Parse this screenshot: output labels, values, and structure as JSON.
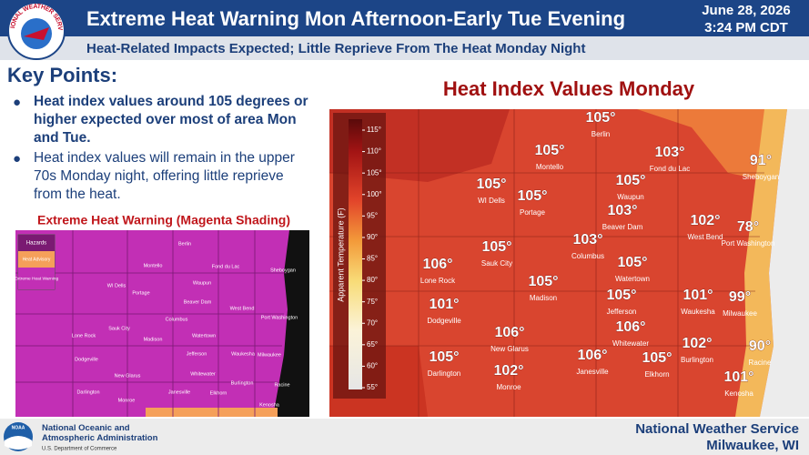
{
  "header": {
    "logo_text": "NATIONAL WEATHER SERVICE",
    "title": "Extreme Heat Warning Mon Afternoon-Early Tue Evening",
    "date": "June 28, 2026",
    "time": "3:24 PM CDT",
    "subtitle": "Heat-Related Impacts Expected; Little Reprieve From The Heat Monday Night"
  },
  "key_points": {
    "heading": "Key Points:",
    "bullets": [
      "Heat index values around 105 degrees or higher expected over most of area Mon and Tue.",
      "Heat index values will remain in the upper 70s Monday night, offering little reprieve from the heat."
    ]
  },
  "warning_map": {
    "title": "Extreme Heat Warning (Magenta Shading)",
    "legend": [
      "Hazards",
      "Heat Advisory",
      "Extreme Heat Warning"
    ],
    "cities": [
      "Berlin",
      "Montello",
      "Fond du Lac",
      "Sheboygan",
      "WI Dells",
      "Waupun",
      "Portage",
      "Beaver Dam",
      "West Bend",
      "Port Washington",
      "Sauk City",
      "Columbus",
      "Lone Rock",
      "Madison",
      "Watertown",
      "Dodgeville",
      "Jefferson",
      "Waukesha",
      "Milwaukee",
      "New Glarus",
      "Whitewater",
      "Burlington",
      "Racine",
      "Darlington",
      "Janesville",
      "Elkhorn",
      "Monroe",
      "Kenosha"
    ]
  },
  "heat_index_map": {
    "title": "Heat Index Values Monday",
    "colorbar_label": "Apparent Temperature (F)",
    "colorbar_ticks": [
      {
        "value": 115,
        "label": "115°"
      },
      {
        "value": 110,
        "label": "110°"
      },
      {
        "value": 105,
        "label": "105°"
      },
      {
        "value": 100,
        "label": "100°"
      },
      {
        "value": 95,
        "label": "95°"
      },
      {
        "value": 90,
        "label": "90°"
      },
      {
        "value": 85,
        "label": "85°"
      },
      {
        "value": 80,
        "label": "80°"
      },
      {
        "value": 75,
        "label": "75°"
      },
      {
        "value": 70,
        "label": "70°"
      },
      {
        "value": 65,
        "label": "65°"
      },
      {
        "value": 60,
        "label": "60°"
      },
      {
        "value": 55,
        "label": "55°"
      }
    ],
    "points": [
      {
        "label": "105°",
        "city": "Berlin"
      },
      {
        "label": "105°",
        "city": "Montello"
      },
      {
        "label": "103°",
        "city": "Fond du Lac"
      },
      {
        "label": "91°",
        "city": "Sheboygan"
      },
      {
        "label": "105°",
        "city": "WI Dells"
      },
      {
        "label": "105°",
        "city": "Portage"
      },
      {
        "label": "105°",
        "city": "Waupun"
      },
      {
        "label": "103°",
        "city": "Beaver Dam"
      },
      {
        "label": "102°",
        "city": "West Bend"
      },
      {
        "label": "78°",
        "city": "Port Washington"
      },
      {
        "label": "105°",
        "city": "Sauk City"
      },
      {
        "label": "103°",
        "city": "Columbus"
      },
      {
        "label": "106°",
        "city": "Lone Rock"
      },
      {
        "label": "105°",
        "city": "Watertown"
      },
      {
        "label": "105°",
        "city": "Madison"
      },
      {
        "label": "101°",
        "city": "Dodgeville"
      },
      {
        "label": "105°",
        "city": "Jefferson"
      },
      {
        "label": "101°",
        "city": "Waukesha"
      },
      {
        "label": "99°",
        "city": "Milwaukee"
      },
      {
        "label": "106°",
        "city": "New Glarus"
      },
      {
        "label": "106°",
        "city": "Whitewater"
      },
      {
        "label": "102°",
        "city": "Burlington"
      },
      {
        "label": "90°",
        "city": "Racine"
      },
      {
        "label": "105°",
        "city": "Darlington"
      },
      {
        "label": "106°",
        "city": "Janesville"
      },
      {
        "label": "105°",
        "city": "Elkhorn"
      },
      {
        "label": "102°",
        "city": "Monroe"
      },
      {
        "label": "101°",
        "city": "Kenosha"
      }
    ]
  },
  "footer": {
    "noaa_logo": "NOAA",
    "agency": "National Oceanic and Atmospheric Administration",
    "department": "U.S. Department of Commerce",
    "office": "National Weather Service",
    "location": "Milwaukee, WI"
  }
}
